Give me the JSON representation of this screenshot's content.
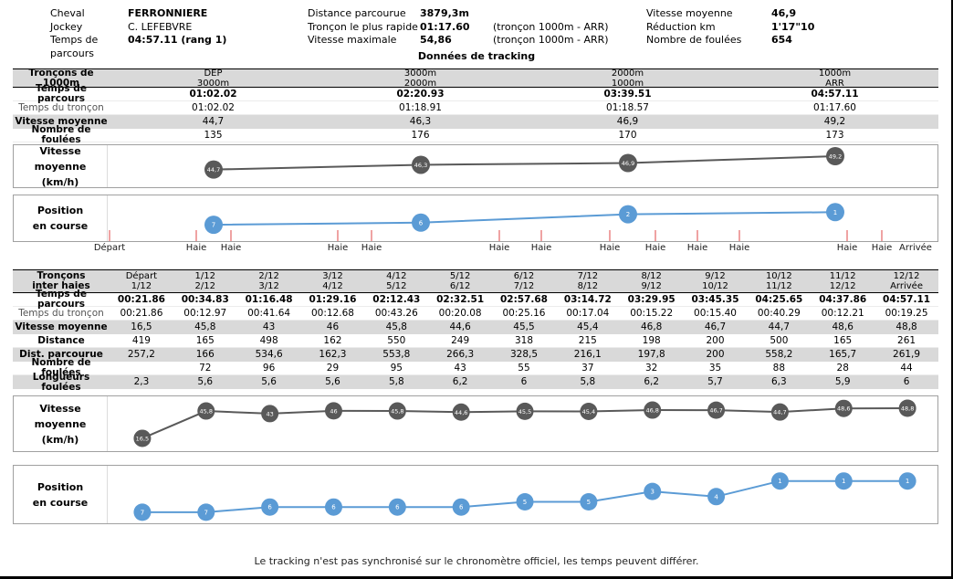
{
  "title": "Données de tracking",
  "footer": "Le tracking n'est pas synchronisé sur le chronomètre officiel, les temps peuvent différer.",
  "colors": {
    "accent_blue": "#5b9bd5",
    "dot_gray": "#595959",
    "tick_red": "#efa3a3",
    "row_shade": "#d9d9d9"
  },
  "header": {
    "groups": [
      {
        "name": "horse-info",
        "rows": [
          {
            "label": "Cheval",
            "value": "FERRONNIERE",
            "bold": true,
            "note": ""
          },
          {
            "label": "Jockey",
            "value": "C. LEFEBVRE",
            "bold": false,
            "note": ""
          },
          {
            "label": "Temps de parcours",
            "value": "04:57.11 (rang 1)",
            "bold": true,
            "note": ""
          }
        ]
      },
      {
        "name": "distance-info",
        "rows": [
          {
            "label": "Distance parcourue",
            "value": "3879,3m",
            "bold": true,
            "note": ""
          },
          {
            "label": "Tronçon le plus rapide",
            "value": "01:17.60",
            "bold": true,
            "note": "(tronçon 1000m - ARR)"
          },
          {
            "label": "Vitesse maximale",
            "value": "54,86",
            "bold": true,
            "note": "(tronçon 1000m - ARR)"
          }
        ]
      },
      {
        "name": "speed-info",
        "rows": [
          {
            "label": "Vitesse moyenne",
            "value": "46,9",
            "bold": true,
            "note": ""
          },
          {
            "label": "Réduction km",
            "value": "1'17\"10",
            "bold": true,
            "note": ""
          },
          {
            "label": "Nombre de foulées",
            "value": "654",
            "bold": true,
            "note": ""
          }
        ]
      }
    ]
  },
  "table1": {
    "corner_label": "Tronçons de 1000m",
    "col_headers": [
      "DEP\n3000m",
      "3000m\n2000m",
      "2000m\n1000m",
      "1000m\nARR"
    ],
    "rows": [
      {
        "label": "Temps de parcours",
        "values": [
          "01:02.02",
          "02:20.93",
          "03:39.51",
          "04:57.11"
        ],
        "bold": true,
        "shaded": false,
        "muted": false
      },
      {
        "label": "Temps du tronçon",
        "values": [
          "01:02.02",
          "01:18.91",
          "01:18.57",
          "01:17.60"
        ],
        "bold": false,
        "shaded": false,
        "muted": true
      },
      {
        "label": "Vitesse moyenne",
        "values": [
          "44,7",
          "46,3",
          "46,9",
          "49,2"
        ],
        "bold": false,
        "shaded": true,
        "muted": false
      },
      {
        "label": "Nombre de foulées",
        "values": [
          "135",
          "176",
          "170",
          "173"
        ],
        "bold": false,
        "shaded": false,
        "muted": false
      }
    ]
  },
  "hurdle_axis": {
    "labels": [
      "Départ",
      "Haie",
      "Haie",
      "Haie",
      "Haie",
      "Haie",
      "Haie",
      "Haie",
      "Haie",
      "Haie",
      "Haie",
      "Haie",
      "Haie",
      "Arrivée"
    ]
  },
  "table2": {
    "corner_label": "Tronçons\ninter haies",
    "col_headers": [
      "Départ\n1/12",
      "1/12\n2/12",
      "2/12\n3/12",
      "3/12\n4/12",
      "4/12\n5/12",
      "5/12\n6/12",
      "6/12\n7/12",
      "7/12\n8/12",
      "8/12\n9/12",
      "9/12\n10/12",
      "10/12\n11/12",
      "11/12\n12/12",
      "12/12\nArrivée"
    ],
    "rows": [
      {
        "label": "Temps de parcours",
        "values": [
          "00:21.86",
          "00:34.83",
          "01:16.48",
          "01:29.16",
          "02:12.43",
          "02:32.51",
          "02:57.68",
          "03:14.72",
          "03:29.95",
          "03:45.35",
          "04:25.65",
          "04:37.86",
          "04:57.11"
        ],
        "bold": true,
        "shaded": false,
        "muted": false
      },
      {
        "label": "Temps du tronçon",
        "values": [
          "00:21.86",
          "00:12.97",
          "00:41.64",
          "00:12.68",
          "00:43.26",
          "00:20.08",
          "00:25.16",
          "00:17.04",
          "00:15.22",
          "00:15.40",
          "00:40.29",
          "00:12.21",
          "00:19.25"
        ],
        "bold": false,
        "shaded": false,
        "muted": true
      },
      {
        "label": "Vitesse moyenne",
        "values": [
          "16,5",
          "45,8",
          "43",
          "46",
          "45,8",
          "44,6",
          "45,5",
          "45,4",
          "46,8",
          "46,7",
          "44,7",
          "48,6",
          "48,8"
        ],
        "bold": false,
        "shaded": true,
        "muted": false
      },
      {
        "label": "Distance",
        "values": [
          "419",
          "165",
          "498",
          "162",
          "550",
          "249",
          "318",
          "215",
          "198",
          "200",
          "500",
          "165",
          "261"
        ],
        "bold": false,
        "shaded": false,
        "muted": false
      },
      {
        "label": "Dist. parcourue",
        "values": [
          "257,2",
          "166",
          "534,6",
          "162,3",
          "553,8",
          "266,3",
          "328,5",
          "216,1",
          "197,8",
          "200",
          "558,2",
          "165,7",
          "261,9"
        ],
        "bold": false,
        "shaded": true,
        "muted": false
      },
      {
        "label": "Nombre de foulées",
        "values": [
          "",
          "72",
          "96",
          "29",
          "95",
          "43",
          "55",
          "37",
          "32",
          "35",
          "88",
          "28",
          "44"
        ],
        "bold": false,
        "shaded": false,
        "muted": false
      },
      {
        "label": "Longueurs foulées",
        "values": [
          "2,3",
          "5,6",
          "5,6",
          "5,6",
          "5,8",
          "6,2",
          "6",
          "5,8",
          "6,2",
          "5,7",
          "6,3",
          "5,9",
          "6"
        ],
        "bold": false,
        "shaded": true,
        "muted": false
      }
    ]
  },
  "chart_data": [
    {
      "type": "line",
      "name": "vitesse-moyenne-1000m",
      "label_lines": [
        "Vitesse moyenne",
        "(km/h)"
      ],
      "x_labels": [
        "DEP-3000m",
        "3000m-2000m",
        "2000m-1000m",
        "1000m-ARR"
      ],
      "values": [
        44.7,
        46.3,
        46.9,
        49.2
      ],
      "point_labels": [
        "44,7",
        "46,3",
        "46,9",
        "49,2"
      ],
      "color": "#595959",
      "ylim": [
        44,
        50
      ],
      "y_inverted": false
    },
    {
      "type": "line",
      "name": "position-en-course-1000m",
      "label_lines": [
        "Position",
        "en course"
      ],
      "x_labels": [
        "DEP-3000m",
        "3000m-2000m",
        "2000m-1000m",
        "1000m-ARR"
      ],
      "values": [
        7,
        6,
        2,
        1
      ],
      "point_labels": [
        "7",
        "6",
        "2",
        "1"
      ],
      "color": "#5b9bd5",
      "ylim": [
        1,
        7
      ],
      "y_inverted": true
    },
    {
      "type": "line",
      "name": "vitesse-moyenne-inter-haies",
      "label_lines": [
        "Vitesse moyenne",
        "(km/h)"
      ],
      "x_labels": [
        "Départ-1/12",
        "1/12-2/12",
        "2/12-3/12",
        "3/12-4/12",
        "4/12-5/12",
        "5/12-6/12",
        "6/12-7/12",
        "7/12-8/12",
        "8/12-9/12",
        "9/12-10/12",
        "10/12-11/12",
        "11/12-12/12",
        "12/12-Arrivée"
      ],
      "values": [
        16.5,
        45.8,
        43,
        46,
        45.8,
        44.6,
        45.5,
        45.4,
        46.8,
        46.7,
        44.7,
        48.6,
        48.8
      ],
      "point_labels": [
        "16,5",
        "45,8",
        "43",
        "46",
        "45,8",
        "44,6",
        "45,5",
        "45,4",
        "46,8",
        "46,7",
        "44,7",
        "48,6",
        "48,8"
      ],
      "color": "#595959",
      "ylim": [
        16,
        49
      ],
      "y_inverted": false
    },
    {
      "type": "line",
      "name": "position-en-course-inter-haies",
      "label_lines": [
        "Position",
        "en course"
      ],
      "x_labels": [
        "Départ-1/12",
        "1/12-2/12",
        "2/12-3/12",
        "3/12-4/12",
        "4/12-5/12",
        "5/12-6/12",
        "6/12-7/12",
        "7/12-8/12",
        "8/12-9/12",
        "9/12-10/12",
        "10/12-11/12",
        "11/12-12/12",
        "12/12-Arrivée"
      ],
      "values": [
        7,
        7,
        6,
        6,
        6,
        6,
        5,
        5,
        3,
        4,
        1,
        1,
        1
      ],
      "point_labels": [
        "7",
        "7",
        "6",
        "6",
        "6",
        "6",
        "5",
        "5",
        "3",
        "4",
        "1",
        "1",
        "1"
      ],
      "color": "#5b9bd5",
      "ylim": [
        1,
        7
      ],
      "y_inverted": true
    }
  ]
}
